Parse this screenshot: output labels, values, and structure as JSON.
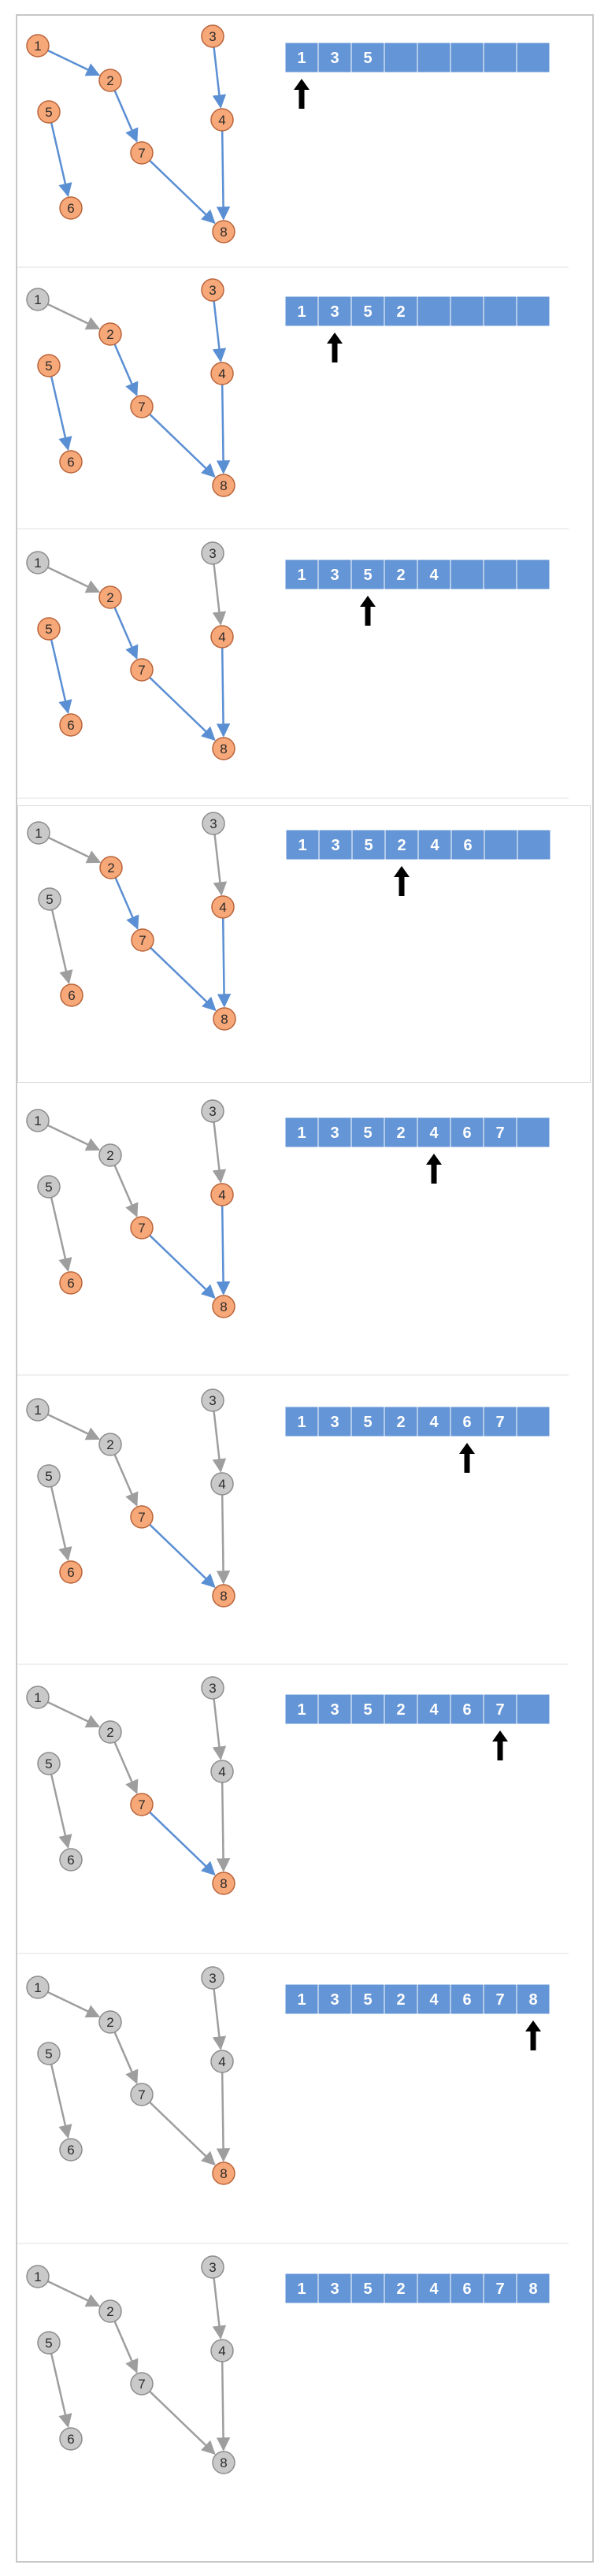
{
  "colors": {
    "visited_fill": "#c9c9c9",
    "visited_stroke": "#8c8c8c",
    "visited_edge": "#9e9e9e",
    "pending_fill": "#f7a879",
    "pending_stroke": "#b9643a",
    "pending_edge": "#5b8fd3",
    "array_fill": "#6495d6",
    "array_border": "#ffffff",
    "label_dark": "#2b2b2b",
    "label_light": "#ffffff",
    "pointer": "#000000"
  },
  "graph": {
    "nodes": [
      "1",
      "2",
      "3",
      "4",
      "5",
      "6",
      "7",
      "8"
    ],
    "edges": [
      [
        "1",
        "2"
      ],
      [
        "2",
        "7"
      ],
      [
        "7",
        "8"
      ],
      [
        "3",
        "4"
      ],
      [
        "4",
        "8"
      ],
      [
        "5",
        "6"
      ]
    ]
  },
  "array_length": 8,
  "steps": [
    {
      "visited": [],
      "order": [
        "1",
        "3",
        "5"
      ],
      "pointer": 0
    },
    {
      "visited": [
        "1"
      ],
      "order": [
        "1",
        "3",
        "5",
        "2"
      ],
      "pointer": 1
    },
    {
      "visited": [
        "1",
        "3"
      ],
      "order": [
        "1",
        "3",
        "5",
        "2",
        "4"
      ],
      "pointer": 2
    },
    {
      "visited": [
        "1",
        "3",
        "5"
      ],
      "order": [
        "1",
        "3",
        "5",
        "2",
        "4",
        "6"
      ],
      "pointer": 3
    },
    {
      "visited": [
        "1",
        "3",
        "5",
        "2"
      ],
      "order": [
        "1",
        "3",
        "5",
        "2",
        "4",
        "6",
        "7"
      ],
      "pointer": 4
    },
    {
      "visited": [
        "1",
        "3",
        "5",
        "2",
        "4"
      ],
      "order": [
        "1",
        "3",
        "5",
        "2",
        "4",
        "6",
        "7"
      ],
      "pointer": 5
    },
    {
      "visited": [
        "1",
        "3",
        "5",
        "2",
        "4",
        "6"
      ],
      "order": [
        "1",
        "3",
        "5",
        "2",
        "4",
        "6",
        "7"
      ],
      "pointer": 6
    },
    {
      "visited": [
        "1",
        "3",
        "5",
        "2",
        "4",
        "6",
        "7"
      ],
      "order": [
        "1",
        "3",
        "5",
        "2",
        "4",
        "6",
        "7",
        "8"
      ],
      "pointer": 7
    },
    {
      "visited": [
        "1",
        "2",
        "3",
        "4",
        "5",
        "6",
        "7",
        "8"
      ],
      "order": [
        "1",
        "3",
        "5",
        "2",
        "4",
        "6",
        "7",
        "8"
      ],
      "pointer": null
    }
  ]
}
